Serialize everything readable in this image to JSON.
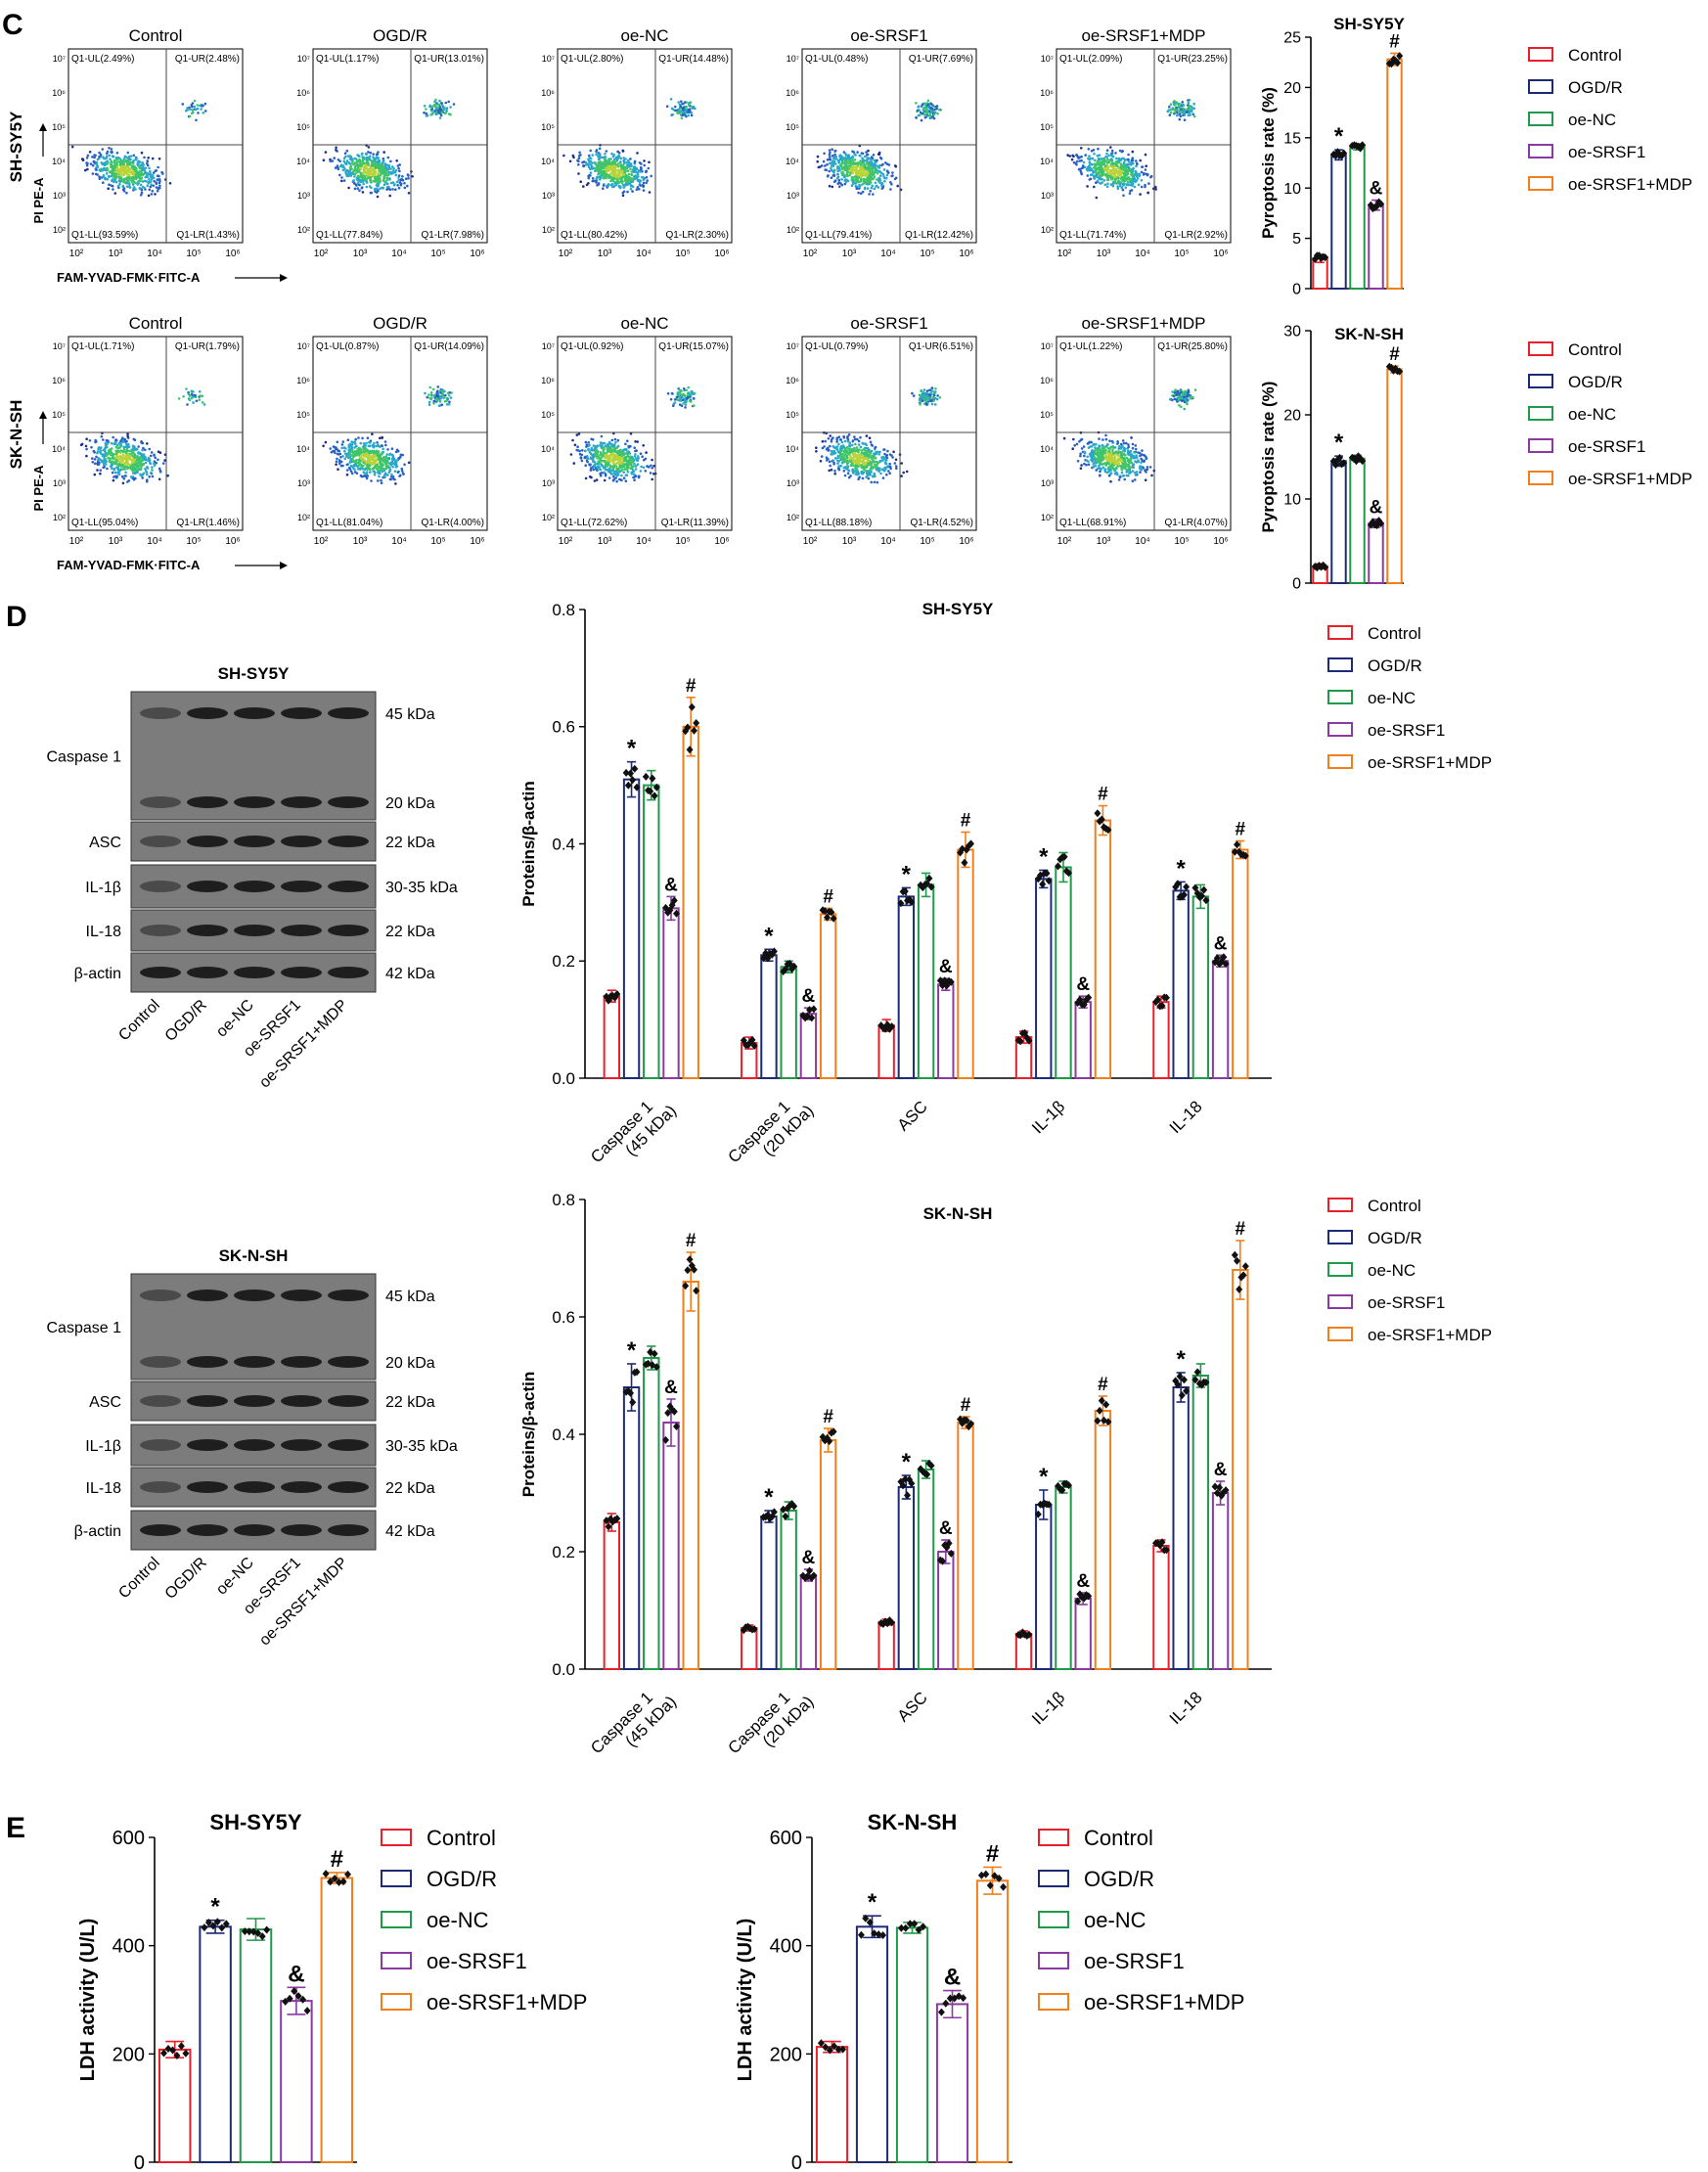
{
  "colors": {
    "Control": "#e8202a",
    "OGD/R": "#1c2a78",
    "oe-NC": "#1f9a48",
    "oe-SRSF1": "#8a3aa0",
    "oe-SRSF1+MDP": "#f07f1c"
  },
  "groups": [
    "Control",
    "OGD/R",
    "oe-NC",
    "oe-SRSF1",
    "oe-SRSF1+MDP"
  ],
  "panels": {
    "c": "C",
    "d": "D",
    "e": "E"
  },
  "flow": {
    "xlabel": "FAM-YVAD-FMK·FITC-A",
    "ylabel": "PI PE-A",
    "rows": [
      {
        "cell": "SH-SY5Y",
        "plots": [
          {
            "title": "Control",
            "ul": "Q1-UL(2.49%)",
            "ur": "Q1-UR(2.48%)",
            "ll": "Q1-LL(93.59%)",
            "lr": "Q1-LR(1.43%)"
          },
          {
            "title": "OGD/R",
            "ul": "Q1-UL(1.17%)",
            "ur": "Q1-UR(13.01%)",
            "ll": "Q1-LL(77.84%)",
            "lr": "Q1-LR(7.98%)"
          },
          {
            "title": "oe-NC",
            "ul": "Q1-UL(2.80%)",
            "ur": "Q1-UR(14.48%)",
            "ll": "Q1-LL(80.42%)",
            "lr": "Q1-LR(2.30%)"
          },
          {
            "title": "oe-SRSF1",
            "ul": "Q1-UL(0.48%)",
            "ur": "Q1-UR(7.69%)",
            "ll": "Q1-LL(79.41%)",
            "lr": "Q1-LR(12.42%)"
          },
          {
            "title": "oe-SRSF1+MDP",
            "ul": "Q1-UL(2.09%)",
            "ur": "Q1-UR(23.25%)",
            "ll": "Q1-LL(71.74%)",
            "lr": "Q1-LR(2.92%)"
          }
        ]
      },
      {
        "cell": "SK-N-SH",
        "plots": [
          {
            "title": "Control",
            "ul": "Q1-UL(1.71%)",
            "ur": "Q1-UR(1.79%)",
            "ll": "Q1-LL(95.04%)",
            "lr": "Q1-LR(1.46%)"
          },
          {
            "title": "OGD/R",
            "ul": "Q1-UL(0.87%)",
            "ur": "Q1-UR(14.09%)",
            "ll": "Q1-LL(81.04%)",
            "lr": "Q1-LR(4.00%)"
          },
          {
            "title": "oe-NC",
            "ul": "Q1-UL(0.92%)",
            "ur": "Q1-UR(15.07%)",
            "ll": "Q1-LL(72.62%)",
            "lr": "Q1-LR(11.39%)"
          },
          {
            "title": "oe-SRSF1",
            "ul": "Q1-UL(0.79%)",
            "ur": "Q1-UR(6.51%)",
            "ll": "Q1-LL(88.18%)",
            "lr": "Q1-LR(4.52%)"
          },
          {
            "title": "oe-SRSF1+MDP",
            "ul": "Q1-UL(1.22%)",
            "ur": "Q1-UR(25.80%)",
            "ll": "Q1-LL(68.91%)",
            "lr": "Q1-LR(4.07%)"
          }
        ]
      }
    ]
  },
  "blots": [
    {
      "cell": "SH-SY5Y",
      "rows": [
        {
          "label": "Caspase 1",
          "kda": [
            "45 kDa",
            "20 kDa"
          ]
        },
        {
          "label": "ASC",
          "kda": [
            "22 kDa"
          ]
        },
        {
          "label": "IL-1β",
          "kda": [
            "30-35 kDa"
          ]
        },
        {
          "label": "IL-18",
          "kda": [
            "22 kDa"
          ]
        },
        {
          "label": "β-actin",
          "kda": [
            "42 kDa"
          ]
        }
      ]
    },
    {
      "cell": "SK-N-SH",
      "rows": [
        {
          "label": "Caspase 1",
          "kda": [
            "45 kDa",
            "20 kDa"
          ]
        },
        {
          "label": "ASC",
          "kda": [
            "22 kDa"
          ]
        },
        {
          "label": "IL-1β",
          "kda": [
            "30-35 kDa"
          ]
        },
        {
          "label": "IL-18",
          "kda": [
            "22 kDa"
          ]
        },
        {
          "label": "β-actin",
          "kda": [
            "42 kDa"
          ]
        }
      ]
    }
  ],
  "chart_data": [
    {
      "id": "C1",
      "type": "bar",
      "title": "SH-SY5Y",
      "xlabel": "",
      "ylabel": "Pyroptosis rate (%)",
      "ylim": [
        0,
        25
      ],
      "yticks": [
        0,
        5,
        10,
        15,
        20,
        25
      ],
      "categories": [
        "Control",
        "OGD/R",
        "oe-NC",
        "oe-SRSF1",
        "oe-SRSF1+MDP"
      ],
      "values": [
        3.0,
        13.3,
        14.1,
        8.3,
        22.8
      ],
      "errors": [
        0.4,
        0.5,
        0.3,
        0.5,
        0.6
      ],
      "marks": [
        "",
        "*",
        "",
        "&",
        "#"
      ],
      "legend": "right"
    },
    {
      "id": "C2",
      "type": "bar",
      "title": "SK-N-SH",
      "xlabel": "",
      "ylabel": "Pyroptosis rate (%)",
      "ylim": [
        0,
        30
      ],
      "yticks": [
        0,
        10,
        20,
        30
      ],
      "categories": [
        "Control",
        "OGD/R",
        "oe-NC",
        "oe-SRSF1",
        "oe-SRSF1+MDP"
      ],
      "values": [
        2.0,
        14.5,
        14.8,
        7.1,
        25.4
      ],
      "errors": [
        0.3,
        0.6,
        0.4,
        0.5,
        0.4
      ],
      "marks": [
        "",
        "*",
        "",
        "&",
        "#"
      ],
      "legend": "right"
    },
    {
      "id": "D1",
      "type": "bar",
      "title": "SH-SY5Y",
      "xlabel": "",
      "ylabel": "Proteins/β-actin",
      "ylim": [
        0,
        0.8
      ],
      "yticks": [
        0.0,
        0.2,
        0.4,
        0.6,
        0.8
      ],
      "categories": [
        "Caspase 1\n(45 kDa)",
        "Caspase 1\n(20 kDa)",
        "ASC",
        "IL-1β",
        "IL-18"
      ],
      "series": [
        {
          "name": "Control",
          "values": [
            0.14,
            0.06,
            0.09,
            0.07,
            0.13
          ],
          "errors": [
            0.01,
            0.01,
            0.01,
            0.01,
            0.01
          ]
        },
        {
          "name": "OGD/R",
          "values": [
            0.51,
            0.21,
            0.31,
            0.34,
            0.32
          ],
          "errors": [
            0.03,
            0.01,
            0.015,
            0.015,
            0.015
          ]
        },
        {
          "name": "oe-NC",
          "values": [
            0.5,
            0.19,
            0.33,
            0.36,
            0.31
          ],
          "errors": [
            0.025,
            0.01,
            0.02,
            0.025,
            0.02
          ]
        },
        {
          "name": "oe-SRSF1",
          "values": [
            0.29,
            0.11,
            0.16,
            0.13,
            0.2
          ],
          "errors": [
            0.02,
            0.01,
            0.01,
            0.01,
            0.01
          ]
        },
        {
          "name": "oe-SRSF1+MDP",
          "values": [
            0.6,
            0.28,
            0.39,
            0.44,
            0.39
          ],
          "errors": [
            0.05,
            0.01,
            0.03,
            0.025,
            0.015
          ]
        }
      ],
      "marks": {
        "OGD/R": "*",
        "oe-SRSF1": "&",
        "oe-SRSF1+MDP": "#"
      },
      "legend": "top-right"
    },
    {
      "id": "D2",
      "type": "bar",
      "title": "SK-N-SH",
      "xlabel": "",
      "ylabel": "Proteins/β-actin",
      "ylim": [
        0,
        0.8
      ],
      "yticks": [
        0.0,
        0.2,
        0.4,
        0.6,
        0.8
      ],
      "categories": [
        "Caspase 1\n(45 kDa)",
        "Caspase 1\n(20 kDa)",
        "ASC",
        "IL-1β",
        "IL-18"
      ],
      "series": [
        {
          "name": "Control",
          "values": [
            0.25,
            0.07,
            0.08,
            0.06,
            0.21
          ],
          "errors": [
            0.015,
            0.005,
            0.005,
            0.005,
            0.01
          ]
        },
        {
          "name": "OGD/R",
          "values": [
            0.48,
            0.26,
            0.31,
            0.28,
            0.48
          ],
          "errors": [
            0.04,
            0.01,
            0.02,
            0.025,
            0.025
          ]
        },
        {
          "name": "oe-NC",
          "values": [
            0.53,
            0.27,
            0.34,
            0.31,
            0.5
          ],
          "errors": [
            0.02,
            0.015,
            0.015,
            0.01,
            0.02
          ]
        },
        {
          "name": "oe-SRSF1",
          "values": [
            0.42,
            0.16,
            0.2,
            0.12,
            0.3
          ],
          "errors": [
            0.04,
            0.01,
            0.02,
            0.01,
            0.02
          ]
        },
        {
          "name": "oe-SRSF1+MDP",
          "values": [
            0.66,
            0.39,
            0.42,
            0.44,
            0.68
          ],
          "errors": [
            0.05,
            0.02,
            0.01,
            0.025,
            0.05
          ]
        }
      ],
      "marks": {
        "OGD/R": "*",
        "oe-SRSF1": "&",
        "oe-SRSF1+MDP": "#"
      },
      "legend": "top-right"
    },
    {
      "id": "E1",
      "type": "bar",
      "title": "SH-SY5Y",
      "xlabel": "",
      "ylabel": "LDH activity (U/L)",
      "ylim": [
        0,
        600
      ],
      "yticks": [
        0,
        200,
        400,
        600
      ],
      "categories": [
        "Control",
        "OGD/R",
        "oe-NC",
        "oe-SRSF1",
        "oe-SRSF1+MDP"
      ],
      "values": [
        208,
        435,
        430,
        298,
        525
      ],
      "errors": [
        15,
        12,
        20,
        25,
        10
      ],
      "marks": [
        "",
        "*",
        "",
        "&",
        "#"
      ],
      "legend": "right"
    },
    {
      "id": "E2",
      "type": "bar",
      "title": "SK-N-SH",
      "xlabel": "",
      "ylabel": "LDH activity (U/L)",
      "ylim": [
        0,
        600
      ],
      "yticks": [
        0,
        200,
        400,
        600
      ],
      "categories": [
        "Control",
        "OGD/R",
        "oe-NC",
        "oe-SRSF1",
        "oe-SRSF1+MDP"
      ],
      "values": [
        213,
        435,
        433,
        292,
        520
      ],
      "errors": [
        10,
        20,
        10,
        25,
        25
      ],
      "marks": [
        "",
        "*",
        "",
        "&",
        "#"
      ],
      "legend": "right"
    }
  ]
}
